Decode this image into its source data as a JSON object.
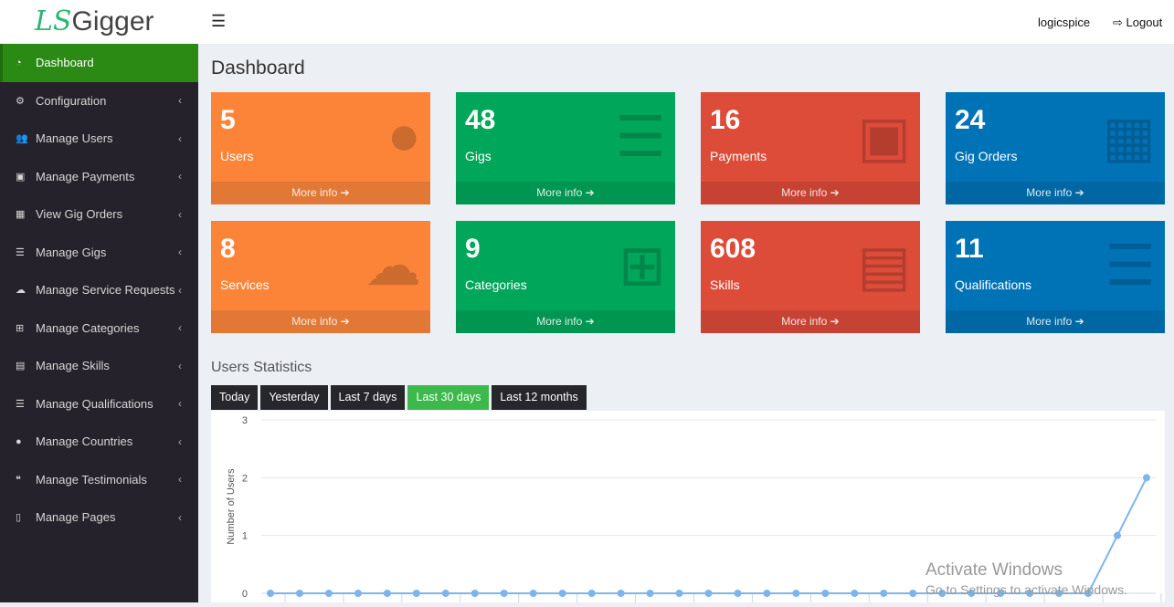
{
  "header": {
    "logo": "LS Gigger",
    "user": "logicspice",
    "logout": "Logout"
  },
  "sidebar": {
    "items": [
      {
        "label": "Dashboard",
        "icon": "dashboard-icon",
        "active": true
      },
      {
        "label": "Configuration",
        "icon": "cogs-icon"
      },
      {
        "label": "Manage Users",
        "icon": "users-icon"
      },
      {
        "label": "Manage Payments",
        "icon": "money-icon"
      },
      {
        "label": "View Gig Orders",
        "icon": "table-icon"
      },
      {
        "label": "Manage Gigs",
        "icon": "list-icon"
      },
      {
        "label": "Manage Service Requests",
        "icon": "cloud-icon"
      },
      {
        "label": "Manage Categories",
        "icon": "sitemap-icon"
      },
      {
        "label": "Manage Skills",
        "icon": "book-icon"
      },
      {
        "label": "Manage Qualifications",
        "icon": "list-icon"
      },
      {
        "label": "Manage Countries",
        "icon": "globe-icon"
      },
      {
        "label": "Manage Testimonials",
        "icon": "quote-icon"
      },
      {
        "label": "Manage Pages",
        "icon": "file-icon"
      }
    ]
  },
  "page_title": "Dashboard",
  "boxes": [
    {
      "num": "5",
      "label": "Users",
      "more": "More info",
      "color": "#fb8439",
      "icon": "user-icon"
    },
    {
      "num": "48",
      "label": "Gigs",
      "more": "More info",
      "color": "#00a65a",
      "icon": "list-icon"
    },
    {
      "num": "16",
      "label": "Payments",
      "more": "More info",
      "color": "#dd4b39",
      "icon": "money-icon"
    },
    {
      "num": "24",
      "label": "Gig Orders",
      "more": "More info",
      "color": "#0073b7",
      "icon": "table-icon"
    },
    {
      "num": "8",
      "label": "Services",
      "more": "More info",
      "color": "#fb8439",
      "icon": "cloud-chart-icon"
    },
    {
      "num": "9",
      "label": "Categories",
      "more": "More info",
      "color": "#00a65a",
      "icon": "sitemap-icon"
    },
    {
      "num": "608",
      "label": "Skills",
      "more": "More info",
      "color": "#dd4b39",
      "icon": "book-icon"
    },
    {
      "num": "11",
      "label": "Qualifications",
      "more": "More info",
      "color": "#0073b7",
      "icon": "list-icon"
    }
  ],
  "stats": {
    "title": "Users Statistics",
    "tabs": [
      "Today",
      "Yesterday",
      "Last 7 days",
      "Last 30 days",
      "Last 12 months"
    ],
    "active_tab": "Last 30 days"
  },
  "chart_data": {
    "type": "line",
    "ylabel": "Number of Users",
    "ylim": [
      0,
      3
    ],
    "yticks": [
      "0",
      "1",
      "2",
      "3"
    ],
    "grid": true,
    "color": "#7cb5ec",
    "values": [
      0,
      0,
      0,
      0,
      0,
      0,
      0,
      0,
      0,
      0,
      0,
      0,
      0,
      0,
      0,
      0,
      0,
      0,
      0,
      0,
      0,
      0,
      0,
      0,
      0,
      0,
      0,
      0,
      0,
      1,
      2
    ]
  },
  "watermark": {
    "title": "Activate Windows",
    "sub": "Go to Settings to activate Windows."
  }
}
